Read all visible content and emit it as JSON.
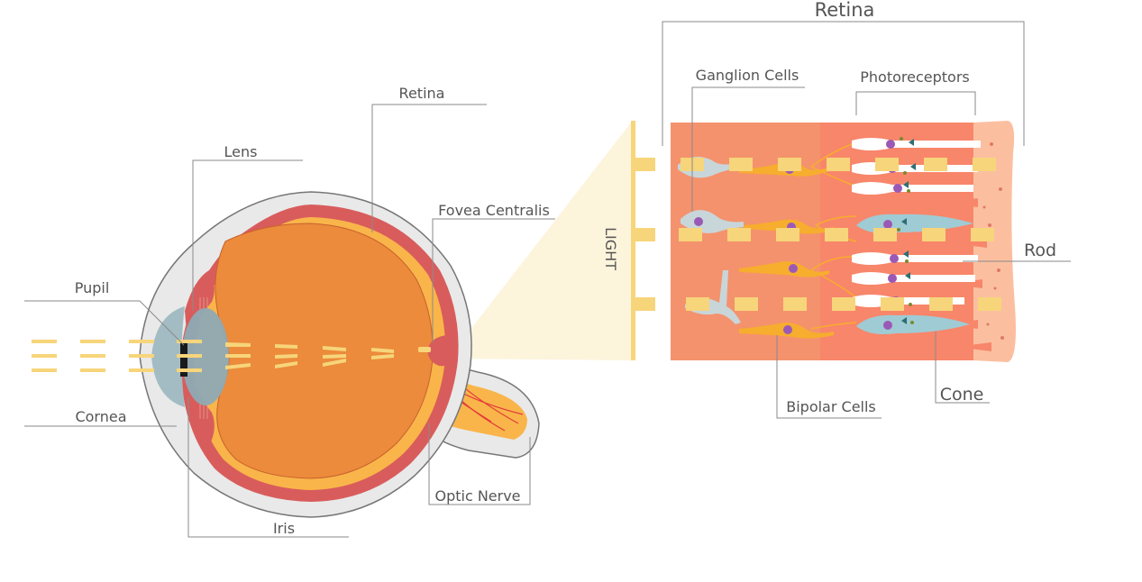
{
  "labels": {
    "retina_top": "Retina",
    "ganglion": "Ganglion Cells",
    "photoreceptors": "Photoreceptors",
    "rod": "Rod",
    "cone": "Cone",
    "bipolar": "Bipolar Cells",
    "light": "LIGHT",
    "retina": "Retina",
    "lens": "Lens",
    "fovea": "Fovea Centralis",
    "pupil": "Pupil",
    "cornea": "Cornea",
    "iris": "Iris",
    "optic_nerve": "Optic Nerve"
  },
  "colors": {
    "sclera": "#e9e9e9",
    "choroid": "#d95c5c",
    "retina_layer": "#f9b54a",
    "vitreous": "#eb8b3b",
    "lens": "#8eaab4",
    "cornea": "#9fb9c1",
    "light_rays": "#f7d57a",
    "light_beam": "#fdf4dc",
    "retina_block_left": "#f4926d",
    "retina_block_mid": "#f8866a",
    "retina_block_right": "#fbbfa0",
    "nerve": "#f9b54a",
    "bipolar_cell": "#f7ad2e",
    "ganglion_cell": "#c8d6da",
    "rod_cell": "#ffffff",
    "cone_cell": "#9fcbd4",
    "nucleus": "#9b59b6"
  }
}
